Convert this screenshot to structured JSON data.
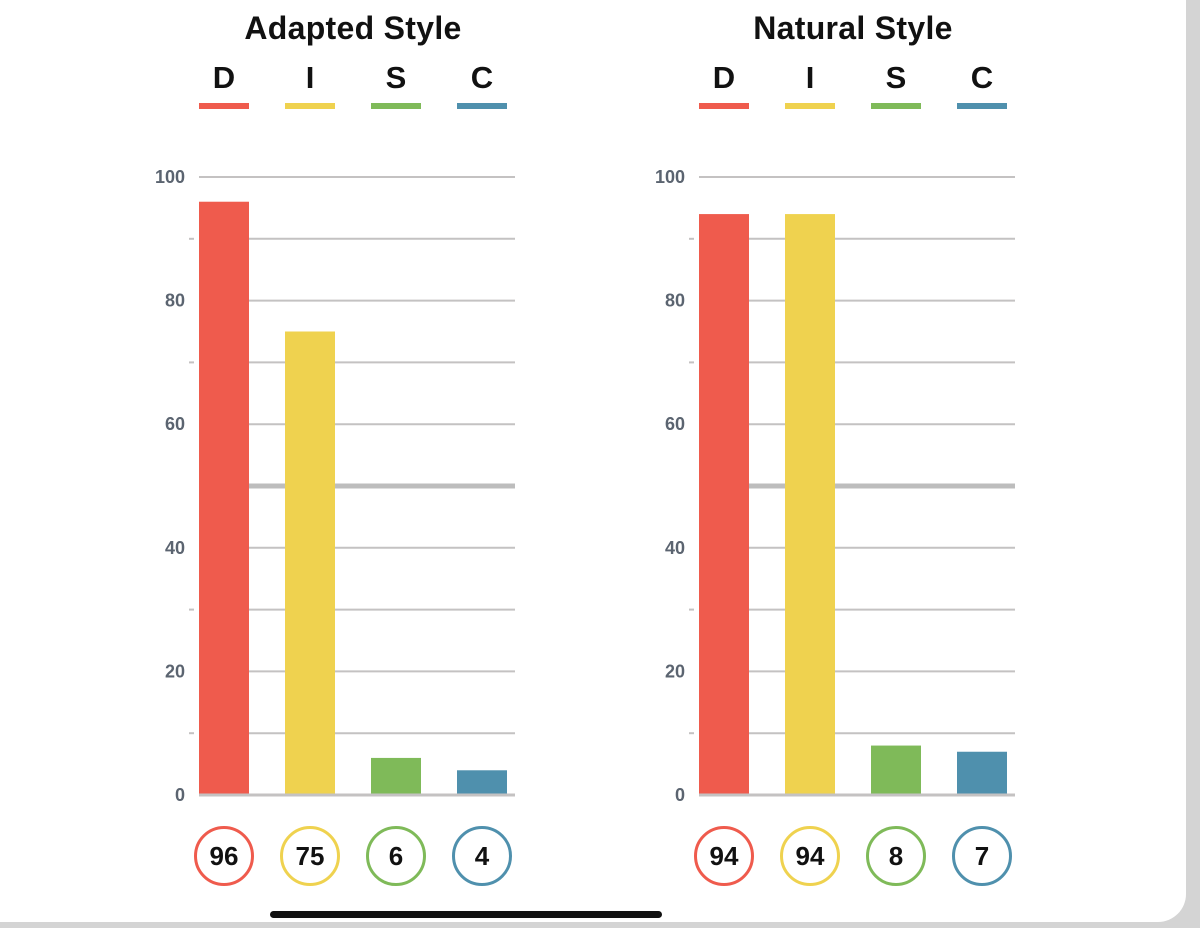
{
  "chart_data": [
    {
      "type": "bar",
      "title": "Adapted Style",
      "categories": [
        "D",
        "I",
        "S",
        "C"
      ],
      "values": [
        96,
        75,
        6,
        4
      ],
      "value_labels": [
        "96",
        "75",
        "6",
        "4"
      ],
      "ylim": [
        0,
        100
      ],
      "yticks": [
        "0",
        "20",
        "40",
        "60",
        "80",
        "100"
      ],
      "grid": true,
      "legend_position": "top",
      "colors": [
        "#ef5b4d",
        "#efd24f",
        "#7fba59",
        "#4f90ad"
      ]
    },
    {
      "type": "bar",
      "title": "Natural Style",
      "categories": [
        "D",
        "I",
        "S",
        "C"
      ],
      "values": [
        94,
        94,
        8,
        7
      ],
      "value_labels": [
        "94",
        "94",
        "8",
        "7"
      ],
      "ylim": [
        0,
        100
      ],
      "yticks": [
        "0",
        "20",
        "40",
        "60",
        "80",
        "100"
      ],
      "grid": true,
      "legend_position": "top",
      "colors": [
        "#ef5b4d",
        "#efd24f",
        "#7fba59",
        "#4f90ad"
      ]
    }
  ],
  "colors": {
    "grid": "#c4c2c2",
    "tick_text": "#5b6470",
    "midline": "#bdbdbd"
  }
}
